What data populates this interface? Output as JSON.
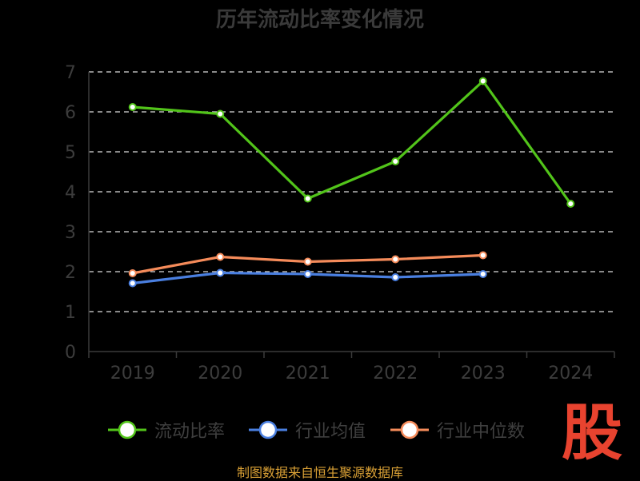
{
  "chart_data": {
    "type": "line",
    "title": "历年流动比率变化情况",
    "categories": [
      "2019",
      "2020",
      "2021",
      "2022",
      "2023",
      "2024"
    ],
    "ylim": [
      0,
      7
    ],
    "yticks": [
      "0",
      "1",
      "2",
      "3",
      "4",
      "5",
      "6",
      "7"
    ],
    "grid": true,
    "legend_position": "bottom",
    "series": [
      {
        "name": "流动比率",
        "color": "#52c41a",
        "values": [
          6.12,
          5.95,
          3.83,
          4.76,
          6.77,
          3.7
        ]
      },
      {
        "name": "行业均值",
        "color": "#4a7fe0",
        "values": [
          1.71,
          1.97,
          1.94,
          1.86,
          1.94,
          null
        ]
      },
      {
        "name": "行业中位数",
        "color": "#f58b5a",
        "values": [
          1.96,
          2.37,
          2.25,
          2.31,
          2.41,
          null
        ]
      }
    ]
  },
  "brand_text": "股",
  "footer_text": "制图数据来自恒生聚源数据库"
}
